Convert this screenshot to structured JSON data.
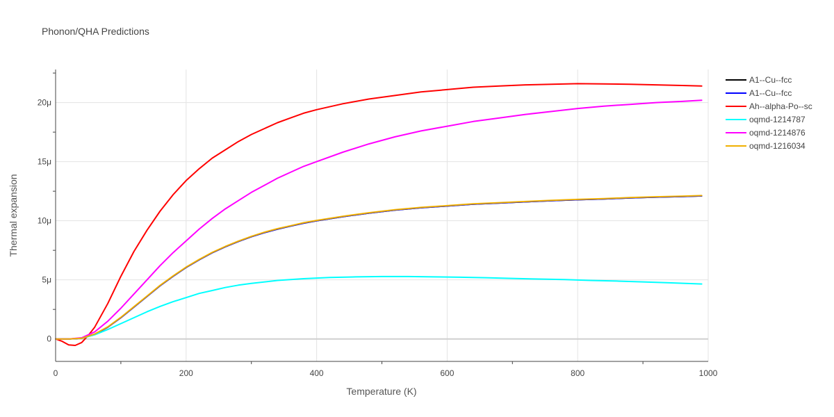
{
  "chart_data": {
    "type": "line",
    "title": "Phonon/QHA Predictions",
    "xlabel": "Temperature (K)",
    "ylabel": "Thermal expansion",
    "xlim": [
      0,
      1000
    ],
    "ylim": [
      -1.9,
      22.8
    ],
    "x_ticks": [
      {
        "value": 0,
        "label": "0"
      },
      {
        "value": 200,
        "label": "200"
      },
      {
        "value": 400,
        "label": "400"
      },
      {
        "value": 600,
        "label": "600"
      },
      {
        "value": 800,
        "label": "800"
      },
      {
        "value": 1000,
        "label": "1000"
      }
    ],
    "y_ticks": [
      {
        "value": 0,
        "label": "0"
      },
      {
        "value": 5,
        "label": "5μ"
      },
      {
        "value": 10,
        "label": "10μ"
      },
      {
        "value": 15,
        "label": "15μ"
      },
      {
        "value": 20,
        "label": "20μ"
      }
    ],
    "grid": true,
    "legend_position": "top-right",
    "series": [
      {
        "name": "A1--Cu--fcc",
        "color": "#000000",
        "x": [
          0,
          20,
          40,
          60,
          80,
          100,
          120,
          140,
          160,
          180,
          200,
          220,
          240,
          260,
          280,
          300,
          320,
          340,
          360,
          380,
          400,
          440,
          480,
          520,
          560,
          600,
          640,
          680,
          720,
          760,
          800,
          840,
          880,
          920,
          960,
          990
        ],
        "y": [
          0,
          0,
          0.05,
          0.4,
          1.0,
          1.8,
          2.7,
          3.6,
          4.5,
          5.3,
          6.05,
          6.7,
          7.3,
          7.8,
          8.25,
          8.65,
          9.0,
          9.3,
          9.55,
          9.8,
          10.0,
          10.35,
          10.65,
          10.9,
          11.1,
          11.25,
          11.4,
          11.5,
          11.6,
          11.7,
          11.78,
          11.85,
          11.93,
          12.0,
          12.05,
          12.1
        ]
      },
      {
        "name": "A1--Cu--fcc",
        "color": "#0000ff",
        "x": [
          0,
          20,
          40,
          60,
          80,
          100,
          120,
          140,
          160,
          180,
          200,
          220,
          240,
          260,
          280,
          300,
          320,
          340,
          360,
          380,
          400,
          440,
          480,
          520,
          560,
          600,
          640,
          680,
          720,
          760,
          800,
          840,
          880,
          920,
          960,
          990
        ],
        "y": [
          0,
          0,
          0.05,
          0.4,
          1.0,
          1.8,
          2.7,
          3.6,
          4.5,
          5.3,
          6.05,
          6.7,
          7.3,
          7.8,
          8.25,
          8.65,
          9.0,
          9.3,
          9.55,
          9.8,
          10.0,
          10.35,
          10.65,
          10.9,
          11.1,
          11.25,
          11.4,
          11.5,
          11.6,
          11.7,
          11.78,
          11.85,
          11.93,
          12.0,
          12.05,
          12.1
        ]
      },
      {
        "name": "Ah--alpha-Po--sc",
        "color": "#ff0000",
        "x": [
          0,
          10,
          20,
          30,
          40,
          50,
          60,
          70,
          80,
          100,
          120,
          140,
          160,
          180,
          200,
          220,
          240,
          260,
          280,
          300,
          320,
          340,
          360,
          380,
          400,
          440,
          480,
          520,
          560,
          600,
          640,
          680,
          720,
          760,
          800,
          840,
          880,
          920,
          960,
          990
        ],
        "y": [
          0,
          -0.2,
          -0.5,
          -0.55,
          -0.3,
          0.3,
          1.0,
          2.0,
          3.0,
          5.3,
          7.4,
          9.2,
          10.8,
          12.2,
          13.4,
          14.4,
          15.3,
          16.0,
          16.7,
          17.3,
          17.8,
          18.3,
          18.7,
          19.1,
          19.4,
          19.9,
          20.3,
          20.6,
          20.9,
          21.1,
          21.3,
          21.4,
          21.5,
          21.55,
          21.6,
          21.58,
          21.55,
          21.5,
          21.45,
          21.4
        ]
      },
      {
        "name": "oqmd-1214787",
        "color": "#00ffff",
        "x": [
          0,
          20,
          40,
          60,
          80,
          100,
          120,
          140,
          160,
          180,
          200,
          220,
          240,
          260,
          280,
          300,
          340,
          380,
          420,
          460,
          500,
          540,
          580,
          620,
          660,
          700,
          740,
          780,
          820,
          860,
          900,
          940,
          990
        ],
        "y": [
          0,
          0,
          0.05,
          0.35,
          0.8,
          1.3,
          1.8,
          2.3,
          2.75,
          3.15,
          3.5,
          3.85,
          4.1,
          4.35,
          4.55,
          4.7,
          4.95,
          5.1,
          5.2,
          5.25,
          5.28,
          5.28,
          5.25,
          5.22,
          5.18,
          5.12,
          5.07,
          5.02,
          4.95,
          4.9,
          4.83,
          4.75,
          4.65
        ]
      },
      {
        "name": "oqmd-1214876",
        "color": "#ff00ff",
        "x": [
          0,
          20,
          40,
          60,
          80,
          100,
          120,
          140,
          160,
          180,
          200,
          220,
          240,
          260,
          280,
          300,
          320,
          340,
          360,
          380,
          400,
          440,
          480,
          520,
          560,
          600,
          640,
          680,
          720,
          760,
          800,
          840,
          880,
          920,
          960,
          990
        ],
        "y": [
          0,
          0,
          0.1,
          0.6,
          1.5,
          2.6,
          3.8,
          5.0,
          6.2,
          7.3,
          8.3,
          9.3,
          10.2,
          11.0,
          11.7,
          12.4,
          13.0,
          13.6,
          14.1,
          14.6,
          15.0,
          15.8,
          16.5,
          17.1,
          17.6,
          18.0,
          18.4,
          18.7,
          19.0,
          19.25,
          19.5,
          19.7,
          19.85,
          20.0,
          20.1,
          20.2
        ]
      },
      {
        "name": "oqmd-1216034",
        "color": "#f0b000",
        "x": [
          0,
          20,
          40,
          60,
          80,
          100,
          120,
          140,
          160,
          180,
          200,
          220,
          240,
          260,
          280,
          300,
          320,
          340,
          360,
          380,
          400,
          440,
          480,
          520,
          560,
          600,
          640,
          680,
          720,
          760,
          800,
          840,
          880,
          920,
          960,
          990
        ],
        "y": [
          0,
          0,
          0.05,
          0.42,
          1.02,
          1.83,
          2.73,
          3.63,
          4.53,
          5.33,
          6.08,
          6.73,
          7.33,
          7.83,
          8.28,
          8.68,
          9.03,
          9.33,
          9.58,
          9.83,
          10.03,
          10.38,
          10.68,
          10.93,
          11.13,
          11.28,
          11.43,
          11.53,
          11.63,
          11.73,
          11.81,
          11.88,
          11.96,
          12.03,
          12.08,
          12.13
        ]
      }
    ]
  }
}
